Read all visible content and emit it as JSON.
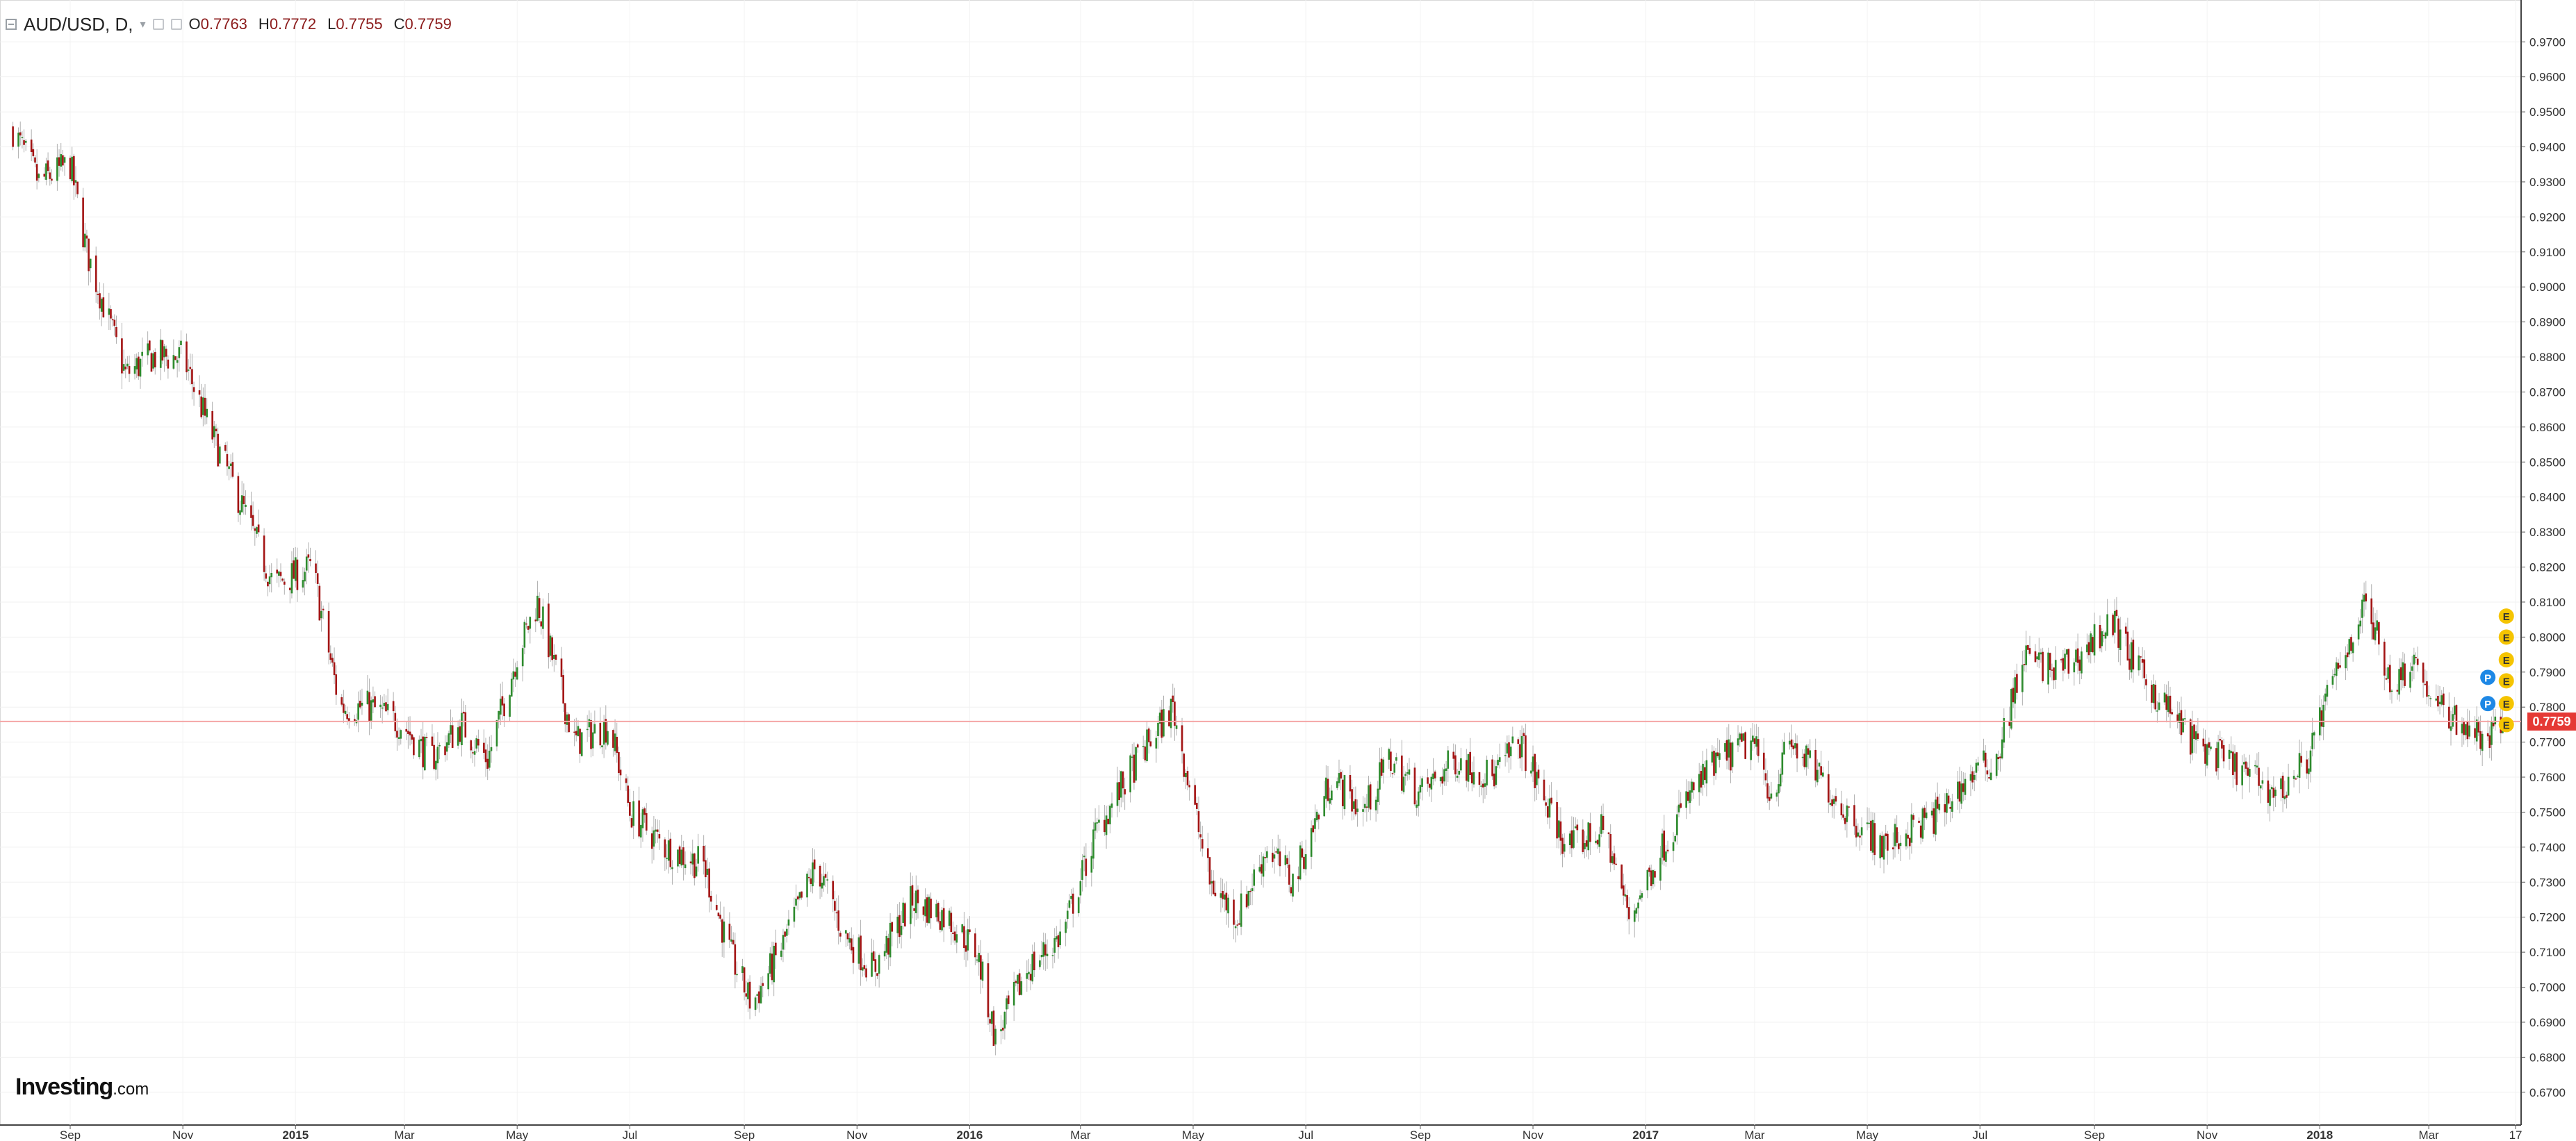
{
  "legend": {
    "symbol": "AUD/USD, D,",
    "open_label": "O",
    "open": "0.7763",
    "high_label": "H",
    "high": "0.7772",
    "low_label": "L",
    "low": "0.7755",
    "close_label": "C",
    "close": "0.7759"
  },
  "logo": {
    "brand": "Investing",
    "domain": ".com"
  },
  "last_price_label": "0.7759",
  "colors": {
    "up": "#2e8b2e",
    "down": "#a31515",
    "last_price_line": "#f4a6a6",
    "last_price_tag": "#e53935",
    "earnings_marker": "#f5c400",
    "event_marker": "#1e88e5"
  },
  "chart_data": {
    "type": "candlestick",
    "symbol": "AUD/USD",
    "interval": "D",
    "ylim": [
      0.665,
      0.976
    ],
    "y_ticks": [
      "0.9700",
      "0.9600",
      "0.9500",
      "0.9400",
      "0.9300",
      "0.9200",
      "0.9100",
      "0.9000",
      "0.8900",
      "0.8800",
      "0.8700",
      "0.8600",
      "0.8500",
      "0.8400",
      "0.8300",
      "0.8200",
      "0.8100",
      "0.8000",
      "0.7900",
      "0.7800",
      "0.7700",
      "0.7600",
      "0.7500",
      "0.7400",
      "0.7300",
      "0.7200",
      "0.7100",
      "0.7000",
      "0.6900",
      "0.6800",
      "0.6700"
    ],
    "x_ticks": [
      {
        "label": "Sep",
        "bold": false
      },
      {
        "label": "Nov",
        "bold": false
      },
      {
        "label": "2015",
        "bold": true
      },
      {
        "label": "Mar",
        "bold": false
      },
      {
        "label": "May",
        "bold": false
      },
      {
        "label": "Jul",
        "bold": false
      },
      {
        "label": "Sep",
        "bold": false
      },
      {
        "label": "Nov",
        "bold": false
      },
      {
        "label": "2016",
        "bold": true
      },
      {
        "label": "Mar",
        "bold": false
      },
      {
        "label": "May",
        "bold": false
      },
      {
        "label": "Jul",
        "bold": false
      },
      {
        "label": "Sep",
        "bold": false
      },
      {
        "label": "Nov",
        "bold": false
      },
      {
        "label": "2017",
        "bold": true
      },
      {
        "label": "Mar",
        "bold": false
      },
      {
        "label": "May",
        "bold": false
      },
      {
        "label": "Jul",
        "bold": false
      },
      {
        "label": "Sep",
        "bold": false
      },
      {
        "label": "Nov",
        "bold": false
      },
      {
        "label": "2018",
        "bold": true
      },
      {
        "label": "Mar",
        "bold": false
      },
      {
        "label": "17",
        "bold": false
      }
    ],
    "period_start": "2014-08",
    "period_end": "2018-04",
    "close_path": [
      [
        "2014-08-01",
        0.945
      ],
      [
        "2014-08-15",
        0.93
      ],
      [
        "2014-09-01",
        0.935
      ],
      [
        "2014-09-10",
        0.91
      ],
      [
        "2014-10-01",
        0.875
      ],
      [
        "2014-10-15",
        0.88
      ],
      [
        "2014-11-01",
        0.88
      ],
      [
        "2014-11-15",
        0.86
      ],
      [
        "2014-12-01",
        0.84
      ],
      [
        "2014-12-20",
        0.815
      ],
      [
        "2015-01-10",
        0.82
      ],
      [
        "2015-01-25",
        0.78
      ],
      [
        "2015-02-10",
        0.78
      ],
      [
        "2015-02-28",
        0.775
      ],
      [
        "2015-03-15",
        0.765
      ],
      [
        "2015-04-01",
        0.775
      ],
      [
        "2015-04-15",
        0.765
      ],
      [
        "2015-05-01",
        0.795
      ],
      [
        "2015-05-12",
        0.81
      ],
      [
        "2015-06-01",
        0.77
      ],
      [
        "2015-06-20",
        0.775
      ],
      [
        "2015-07-01",
        0.75
      ],
      [
        "2015-07-20",
        0.74
      ],
      [
        "2015-08-10",
        0.735
      ],
      [
        "2015-08-24",
        0.71
      ],
      [
        "2015-09-05",
        0.695
      ],
      [
        "2015-09-20",
        0.71
      ],
      [
        "2015-10-10",
        0.735
      ],
      [
        "2015-10-25",
        0.715
      ],
      [
        "2015-11-10",
        0.705
      ],
      [
        "2015-12-01",
        0.725
      ],
      [
        "2015-12-20",
        0.72
      ],
      [
        "2016-01-05",
        0.71
      ],
      [
        "2016-01-15",
        0.685
      ],
      [
        "2016-02-01",
        0.705
      ],
      [
        "2016-02-20",
        0.715
      ],
      [
        "2016-03-10",
        0.745
      ],
      [
        "2016-04-01",
        0.765
      ],
      [
        "2016-04-20",
        0.78
      ],
      [
        "2016-05-10",
        0.73
      ],
      [
        "2016-05-25",
        0.72
      ],
      [
        "2016-06-10",
        0.74
      ],
      [
        "2016-06-24",
        0.73
      ],
      [
        "2016-07-15",
        0.76
      ],
      [
        "2016-08-01",
        0.75
      ],
      [
        "2016-08-15",
        0.765
      ],
      [
        "2016-09-01",
        0.755
      ],
      [
        "2016-09-20",
        0.765
      ],
      [
        "2016-10-10",
        0.76
      ],
      [
        "2016-10-25",
        0.77
      ],
      [
        "2016-11-10",
        0.75
      ],
      [
        "2016-11-20",
        0.74
      ],
      [
        "2016-12-10",
        0.745
      ],
      [
        "2016-12-23",
        0.72
      ],
      [
        "2017-01-10",
        0.74
      ],
      [
        "2017-01-25",
        0.755
      ],
      [
        "2017-02-10",
        0.765
      ],
      [
        "2017-02-28",
        0.77
      ],
      [
        "2017-03-10",
        0.755
      ],
      [
        "2017-03-20",
        0.77
      ],
      [
        "2017-04-05",
        0.76
      ],
      [
        "2017-04-20",
        0.75
      ],
      [
        "2017-05-10",
        0.74
      ],
      [
        "2017-05-25",
        0.745
      ],
      [
        "2017-06-10",
        0.75
      ],
      [
        "2017-06-25",
        0.76
      ],
      [
        "2017-07-10",
        0.765
      ],
      [
        "2017-07-25",
        0.795
      ],
      [
        "2017-08-10",
        0.79
      ],
      [
        "2017-08-25",
        0.795
      ],
      [
        "2017-09-10",
        0.805
      ],
      [
        "2017-09-25",
        0.79
      ],
      [
        "2017-10-10",
        0.78
      ],
      [
        "2017-10-25",
        0.77
      ],
      [
        "2017-11-10",
        0.765
      ],
      [
        "2017-11-25",
        0.76
      ],
      [
        "2017-12-10",
        0.755
      ],
      [
        "2017-12-25",
        0.765
      ],
      [
        "2018-01-10",
        0.79
      ],
      [
        "2018-01-26",
        0.81
      ],
      [
        "2018-02-10",
        0.785
      ],
      [
        "2018-02-20",
        0.795
      ],
      [
        "2018-03-05",
        0.78
      ],
      [
        "2018-03-20",
        0.775
      ],
      [
        "2018-04-01",
        0.77
      ],
      [
        "2018-04-10",
        0.776
      ]
    ],
    "last_price": 0.7759,
    "markers": [
      {
        "type": "E",
        "date": "2018-04-12",
        "price": 0.806
      },
      {
        "type": "E",
        "date": "2018-04-12",
        "price": 0.8
      },
      {
        "type": "E",
        "date": "2018-04-12",
        "price": 0.7935
      },
      {
        "type": "E",
        "date": "2018-04-12",
        "price": 0.7875
      },
      {
        "type": "E",
        "date": "2018-04-12",
        "price": 0.781
      },
      {
        "type": "E",
        "date": "2018-04-12",
        "price": 0.775
      },
      {
        "type": "P",
        "date": "2018-04-02",
        "price": 0.7885
      },
      {
        "type": "P",
        "date": "2018-04-02",
        "price": 0.781
      }
    ]
  }
}
